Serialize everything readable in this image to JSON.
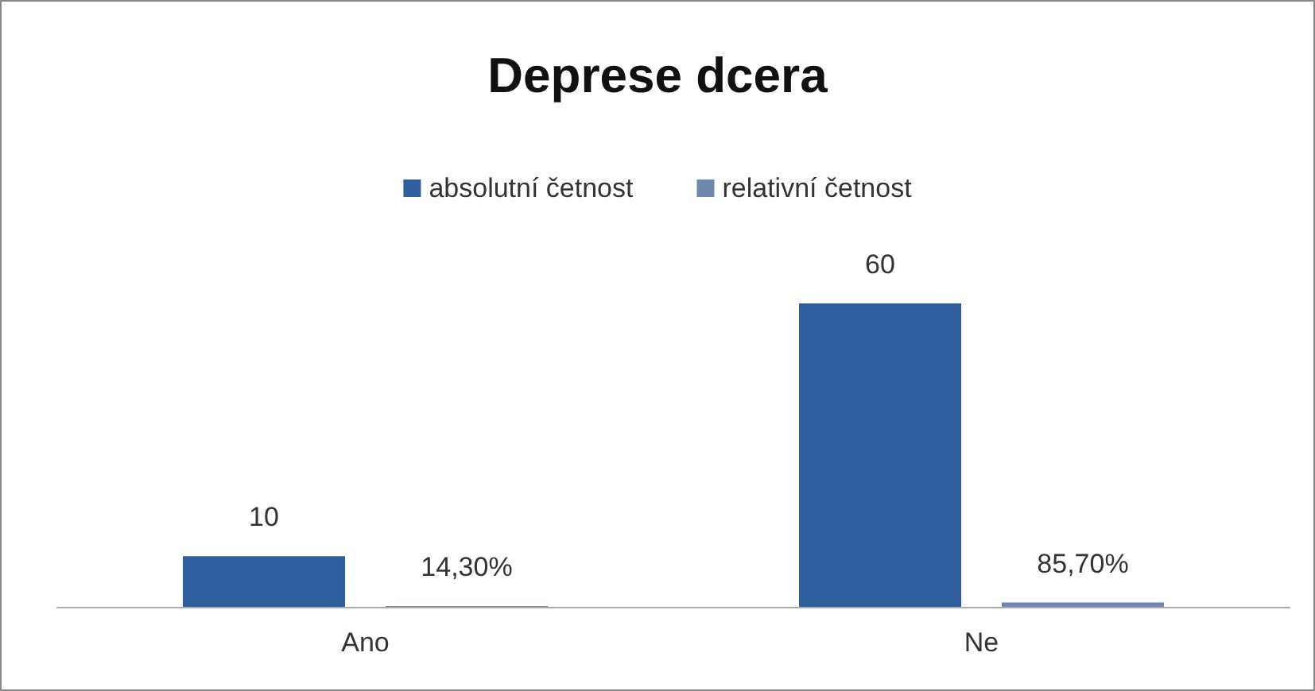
{
  "chart_data": {
    "type": "bar",
    "title": "Deprese dcera",
    "categories": [
      "Ano",
      "Ne"
    ],
    "series": [
      {
        "name": "absolutní četnost",
        "color": "#2f5f9e",
        "values": [
          10,
          60
        ],
        "value_labels": [
          "10",
          "60"
        ]
      },
      {
        "name": "relativní četnost",
        "color": "#6f86ad",
        "values": [
          0.143,
          0.857
        ],
        "value_labels": [
          "14,30%",
          "85,70%"
        ]
      }
    ],
    "legend": "top"
  }
}
